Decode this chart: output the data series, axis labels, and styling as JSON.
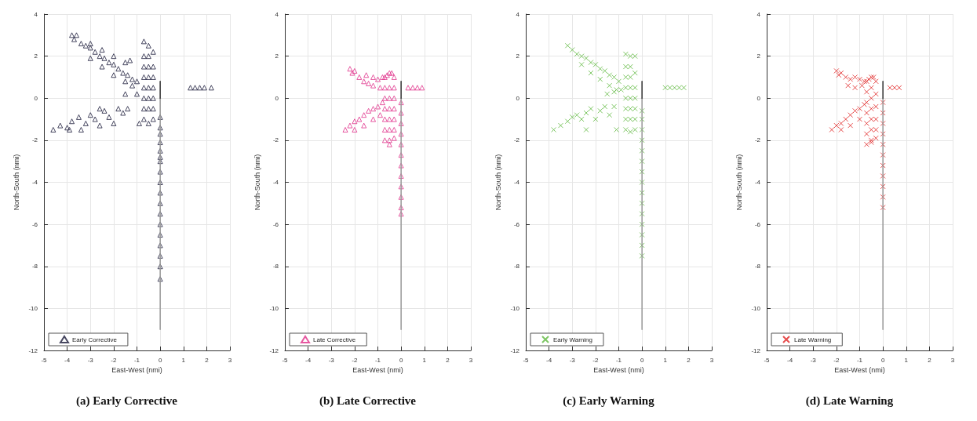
{
  "chart_data": [
    {
      "type": "scatter",
      "title": "(a) Early Corrective",
      "xlabel": "East-West (nmi)",
      "ylabel": "North-South (nmi)",
      "xlim": [
        -5,
        3
      ],
      "xticks": [
        -5,
        -4,
        -3,
        -2,
        -1,
        0,
        1,
        2,
        3
      ],
      "ylim": [
        -12,
        4
      ],
      "yticks": [
        -12,
        -10,
        -8,
        -6,
        -4,
        -2,
        0,
        2,
        4
      ],
      "grid": true,
      "legend": "bottom left",
      "series": [
        {
          "name": "Early Corrective",
          "marker": "triangle",
          "color": "#1a1a3a",
          "x": [
            -3.8,
            -3.6,
            -3.7,
            -3.4,
            -3.2,
            -3.0,
            -2.8,
            -2.6,
            -2.4,
            -2.2,
            -2.0,
            -1.8,
            -1.6,
            -1.4,
            -1.2,
            -1.0,
            -3.0,
            -2.5,
            -2.0,
            -1.5,
            -1.2,
            -3.0,
            -2.5,
            -2.0,
            -1.5,
            -1.3,
            -1.5,
            -1.0,
            -0.9,
            -0.7,
            -0.7,
            -0.7,
            -0.7,
            -0.7,
            -0.7,
            -0.7,
            -0.7,
            -0.5,
            -0.5,
            -0.5,
            -0.5,
            -0.5,
            -0.5,
            -0.5,
            -0.5,
            -0.3,
            -0.3,
            -0.3,
            -0.3,
            -0.3,
            -0.3,
            -0.3,
            -4.6,
            -4.3,
            -4.0,
            -3.8,
            -3.5,
            -3.2,
            -3.0,
            -2.8,
            -2.6,
            -2.4,
            -2.2,
            -2.0,
            -1.8,
            -1.6,
            -1.4,
            -2.6,
            -3.4,
            -3.9,
            1.3,
            1.5,
            1.7,
            1.9,
            2.2,
            0,
            0,
            0,
            0,
            0,
            0,
            0,
            0,
            0,
            0,
            0,
            0,
            0,
            0,
            0,
            0,
            0,
            0
          ],
          "values": [
            3.0,
            3.0,
            2.8,
            2.6,
            2.5,
            2.4,
            2.2,
            2.0,
            1.9,
            1.7,
            1.6,
            1.4,
            1.2,
            1.1,
            0.9,
            0.8,
            1.9,
            1.5,
            1.1,
            0.8,
            0.6,
            2.6,
            2.3,
            2.0,
            1.7,
            1.8,
            0.2,
            0.2,
            -1.2,
            2.7,
            2.0,
            1.5,
            1.0,
            0.5,
            0.0,
            -0.5,
            -1.0,
            2.5,
            2.0,
            1.5,
            1.0,
            0.5,
            0.0,
            -0.5,
            -1.2,
            2.2,
            1.5,
            1.0,
            0.5,
            0.0,
            -0.5,
            -1.0,
            -1.5,
            -1.3,
            -1.4,
            -1.1,
            -0.9,
            -1.2,
            -0.8,
            -1.0,
            -1.3,
            -0.6,
            -0.9,
            -1.2,
            -0.5,
            -0.7,
            -0.5,
            -0.5,
            -1.5,
            -1.5,
            0.5,
            0.5,
            0.5,
            0.5,
            0.5,
            -0.9,
            -1.4,
            -2.1,
            -2.5,
            -3.0,
            -3.5,
            -4.0,
            -4.5,
            -5.0,
            -5.5,
            -6.0,
            -6.5,
            -7.0,
            -7.5,
            -8.0,
            -8.6,
            -2.8,
            -1.7
          ]
        },
        {
          "type": "line",
          "color": "#999999",
          "x": [
            0,
            0
          ],
          "values": [
            0,
            -11
          ]
        },
        {
          "type": "line",
          "color": "#333333",
          "x": [
            0,
            0
          ],
          "values": [
            0.8,
            0
          ]
        }
      ]
    },
    {
      "type": "scatter",
      "title": "(b) Late Corrective",
      "xlabel": "East-West (nmi)",
      "ylabel": "North-South (nmi)",
      "xlim": [
        -5,
        3
      ],
      "xticks": [
        -5,
        -4,
        -3,
        -2,
        -1,
        0,
        1,
        2,
        3
      ],
      "ylim": [
        -12,
        4
      ],
      "yticks": [
        -12,
        -10,
        -8,
        -6,
        -4,
        -2,
        0,
        2,
        4
      ],
      "grid": true,
      "legend": "bottom left",
      "series": [
        {
          "name": "Late Corrective",
          "marker": "triangle",
          "color": "#e0308a",
          "x": [
            -2.2,
            -2.0,
            -1.8,
            -1.6,
            -1.4,
            -1.2,
            -1.0,
            -0.8,
            -0.6,
            -0.4,
            -1.5,
            -1.2,
            -0.9,
            -2.1,
            -0.7,
            -0.7,
            -0.7,
            -0.7,
            -0.7,
            -0.7,
            -0.7,
            -0.5,
            -0.5,
            -0.5,
            -0.5,
            -0.5,
            -0.5,
            -0.5,
            -0.5,
            -0.3,
            -0.3,
            -0.3,
            -0.3,
            -0.3,
            -0.3,
            -0.3,
            -2.4,
            -2.2,
            -2.0,
            -1.8,
            -1.6,
            -1.4,
            -1.2,
            -1.0,
            -0.8,
            -2.0,
            -1.6,
            -1.2,
            -0.9,
            0.3,
            0.5,
            0.7,
            0.9,
            0,
            0,
            0,
            0,
            0,
            0,
            0,
            0,
            0,
            0,
            0,
            0
          ],
          "values": [
            1.4,
            1.3,
            1.0,
            0.8,
            0.7,
            1.0,
            0.9,
            1.0,
            1.1,
            1.2,
            1.1,
            0.6,
            0.5,
            1.2,
            1.0,
            0.5,
            0.0,
            -0.5,
            -1.0,
            -1.5,
            -2.0,
            1.2,
            0.5,
            0.0,
            -0.5,
            -1.0,
            -1.5,
            -2.0,
            -2.2,
            1.0,
            0.5,
            0.0,
            -0.5,
            -1.0,
            -1.5,
            -1.9,
            -1.5,
            -1.3,
            -1.1,
            -1.0,
            -0.8,
            -0.6,
            -0.5,
            -0.4,
            -0.2,
            -1.5,
            -1.3,
            -1.0,
            -0.8,
            0.5,
            0.5,
            0.5,
            0.5,
            -0.2,
            -0.7,
            -1.2,
            -1.7,
            -2.2,
            -2.7,
            -3.2,
            -3.7,
            -4.2,
            -4.7,
            -5.2,
            -5.5
          ]
        },
        {
          "type": "line",
          "color": "#999999",
          "x": [
            0,
            0
          ],
          "values": [
            0,
            -11
          ]
        },
        {
          "type": "line",
          "color": "#333333",
          "x": [
            0,
            0
          ],
          "values": [
            0.8,
            0
          ]
        }
      ]
    },
    {
      "type": "scatter",
      "title": "(c) Early Warning",
      "xlabel": "East-West (nmi)",
      "ylabel": "North-South (nmi)",
      "xlim": [
        -5,
        3
      ],
      "xticks": [
        -5,
        -4,
        -3,
        -2,
        -1,
        0,
        1,
        2,
        3
      ],
      "ylim": [
        -12,
        4
      ],
      "yticks": [
        -12,
        -10,
        -8,
        -6,
        -4,
        -2,
        0,
        2,
        4
      ],
      "grid": true,
      "legend": "bottom left",
      "series": [
        {
          "name": "Early Warning",
          "marker": "cross",
          "color": "#5cb83c",
          "x": [
            -3.2,
            -3.0,
            -2.8,
            -2.6,
            -2.4,
            -2.2,
            -2.0,
            -1.8,
            -1.6,
            -1.4,
            -1.2,
            -1.0,
            -2.6,
            -2.2,
            -1.8,
            -1.4,
            -1.1,
            -1.5,
            -1.2,
            -0.9,
            -0.7,
            -0.7,
            -0.7,
            -0.7,
            -0.7,
            -0.7,
            -0.7,
            -0.7,
            -0.5,
            -0.5,
            -0.5,
            -0.5,
            -0.5,
            -0.5,
            -0.5,
            -0.5,
            -0.3,
            -0.3,
            -0.3,
            -0.3,
            -0.3,
            -0.3,
            -0.3,
            -3.8,
            -3.5,
            -3.2,
            -3.0,
            -2.8,
            -2.6,
            -2.4,
            -2.2,
            -2.0,
            -1.8,
            -1.6,
            -1.4,
            -1.2,
            -2.4,
            -1.1,
            1.0,
            1.2,
            1.4,
            1.6,
            1.8,
            0,
            0,
            0,
            0,
            0,
            0,
            0,
            0,
            0,
            0,
            0,
            0,
            0,
            0,
            0
          ],
          "values": [
            2.5,
            2.3,
            2.1,
            2.0,
            1.9,
            1.7,
            1.6,
            1.4,
            1.3,
            1.1,
            1.0,
            0.8,
            1.6,
            1.2,
            0.9,
            0.6,
            0.4,
            0.2,
            0.3,
            0.4,
            2.1,
            1.5,
            1.0,
            0.5,
            0.0,
            -0.5,
            -1.0,
            -1.5,
            2.0,
            1.5,
            1.0,
            0.5,
            0.0,
            -0.5,
            -1.0,
            -1.6,
            2.0,
            1.2,
            0.5,
            0.0,
            -0.5,
            -1.0,
            -1.5,
            -1.5,
            -1.3,
            -1.1,
            -0.9,
            -0.8,
            -1.0,
            -0.7,
            -0.5,
            -1.0,
            -0.6,
            -0.4,
            -0.8,
            -0.4,
            -1.5,
            -1.5,
            0.5,
            0.5,
            0.5,
            0.5,
            0.5,
            -0.6,
            -1.0,
            -1.5,
            -2.0,
            -2.5,
            -3.0,
            -3.5,
            -4.0,
            -4.5,
            -5.0,
            -5.5,
            -6.0,
            -6.5,
            -7.0,
            -7.5
          ]
        },
        {
          "type": "line",
          "color": "#999999",
          "x": [
            0,
            0
          ],
          "values": [
            0,
            -11
          ]
        },
        {
          "type": "line",
          "color": "#333333",
          "x": [
            0,
            0
          ],
          "values": [
            0.8,
            0
          ]
        }
      ]
    },
    {
      "type": "scatter",
      "title": "(d) Late Warning",
      "xlabel": "East-West (nmi)",
      "ylabel": "North-South (nmi)",
      "xlim": [
        -5,
        3
      ],
      "xticks": [
        -5,
        -4,
        -3,
        -2,
        -1,
        0,
        1,
        2,
        3
      ],
      "ylim": [
        -12,
        4
      ],
      "yticks": [
        -12,
        -10,
        -8,
        -6,
        -4,
        -2,
        0,
        2,
        4
      ],
      "grid": true,
      "legend": "bottom left",
      "series": [
        {
          "name": "Late Warning",
          "marker": "cross",
          "color": "#e02020",
          "x": [
            -2.0,
            -1.8,
            -1.6,
            -1.4,
            -1.2,
            -1.0,
            -0.8,
            -0.6,
            -0.4,
            -1.5,
            -1.2,
            -0.9,
            -1.9,
            -0.7,
            -0.7,
            -0.7,
            -0.7,
            -0.7,
            -0.7,
            -0.7,
            -0.5,
            -0.5,
            -0.5,
            -0.5,
            -0.5,
            -0.5,
            -0.5,
            -0.5,
            -0.3,
            -0.3,
            -0.3,
            -0.3,
            -0.3,
            -0.3,
            -2.2,
            -2.0,
            -1.8,
            -1.6,
            -1.4,
            -1.2,
            -1.0,
            -0.8,
            -1.8,
            -1.4,
            -1.0,
            0.3,
            0.5,
            0.7,
            0,
            0,
            0,
            0,
            0,
            0,
            0,
            0,
            0,
            0,
            0
          ],
          "values": [
            1.3,
            1.2,
            1.0,
            0.9,
            1.0,
            0.9,
            0.8,
            0.9,
            1.0,
            0.6,
            0.5,
            0.6,
            1.1,
            0.8,
            0.3,
            -0.2,
            -0.7,
            -1.2,
            -1.7,
            -2.2,
            1.0,
            0.5,
            0.0,
            -0.5,
            -1.0,
            -1.5,
            -2.0,
            -2.1,
            0.8,
            0.2,
            -0.4,
            -1.0,
            -1.5,
            -1.9,
            -1.5,
            -1.3,
            -1.2,
            -1.0,
            -0.8,
            -0.6,
            -0.5,
            -0.3,
            -1.5,
            -1.3,
            -1.0,
            0.5,
            0.5,
            0.5,
            -0.2,
            -0.7,
            -1.2,
            -1.7,
            -2.2,
            -2.7,
            -3.2,
            -3.7,
            -4.2,
            -4.7,
            -5.2
          ]
        },
        {
          "type": "line",
          "color": "#999999",
          "x": [
            0,
            0
          ],
          "values": [
            0,
            -11
          ]
        },
        {
          "type": "line",
          "color": "#333333",
          "x": [
            0,
            0
          ],
          "values": [
            0.8,
            0
          ]
        }
      ]
    }
  ]
}
